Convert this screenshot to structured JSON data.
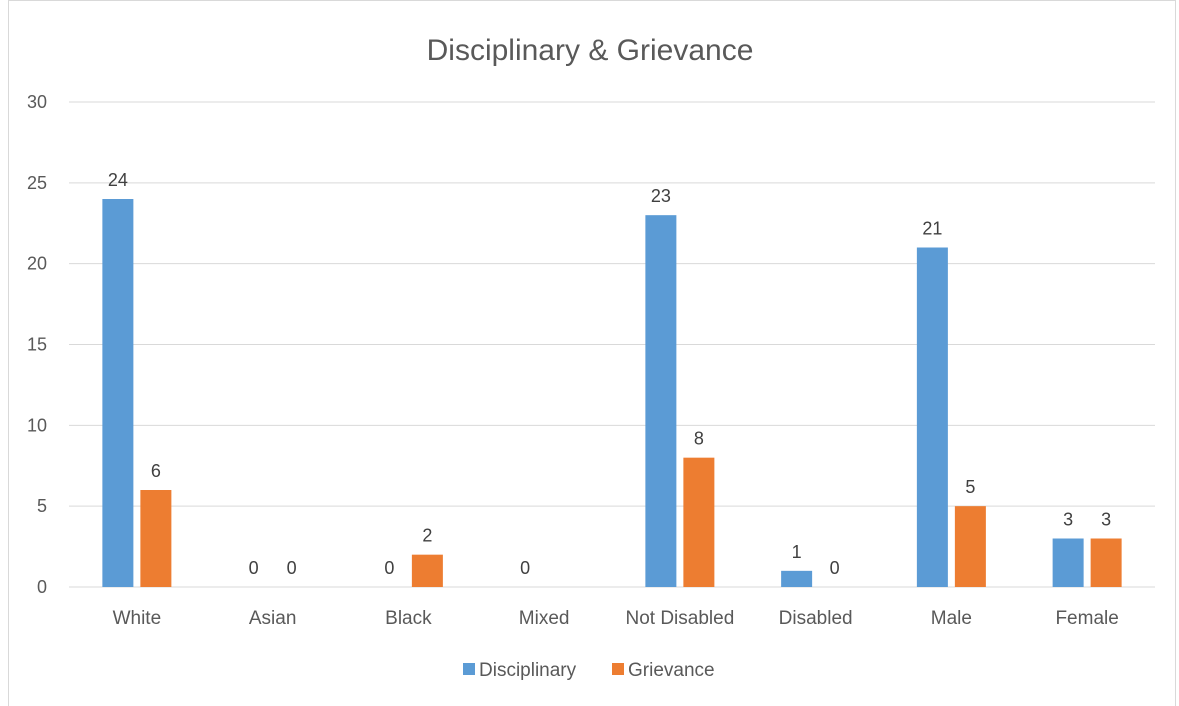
{
  "chart_data": {
    "type": "bar",
    "title": "Disciplinary & Grievance",
    "xlabel": "",
    "ylabel": "",
    "categories": [
      "White",
      "Asian",
      "Black",
      "Mixed",
      "Not Disabled",
      "Disabled",
      "Male",
      "Female"
    ],
    "series": [
      {
        "name": "Disciplinary",
        "color": "#5b9bd5",
        "values": [
          24,
          0,
          0,
          0,
          23,
          1,
          21,
          3
        ]
      },
      {
        "name": "Grievance",
        "color": "#ed7d31",
        "values": [
          6,
          0,
          2,
          null,
          8,
          0,
          5,
          3
        ]
      }
    ],
    "data_labels": [
      [
        "24",
        "0",
        "0",
        "0",
        "23",
        "1",
        "21",
        "3"
      ],
      [
        "6",
        "0",
        "2",
        "",
        "8",
        "0",
        "5",
        "3"
      ]
    ],
    "ylim": [
      0,
      30
    ],
    "yticks": [
      0,
      5,
      10,
      15,
      20,
      25,
      30
    ],
    "grid": true,
    "legend_position": "bottom"
  }
}
